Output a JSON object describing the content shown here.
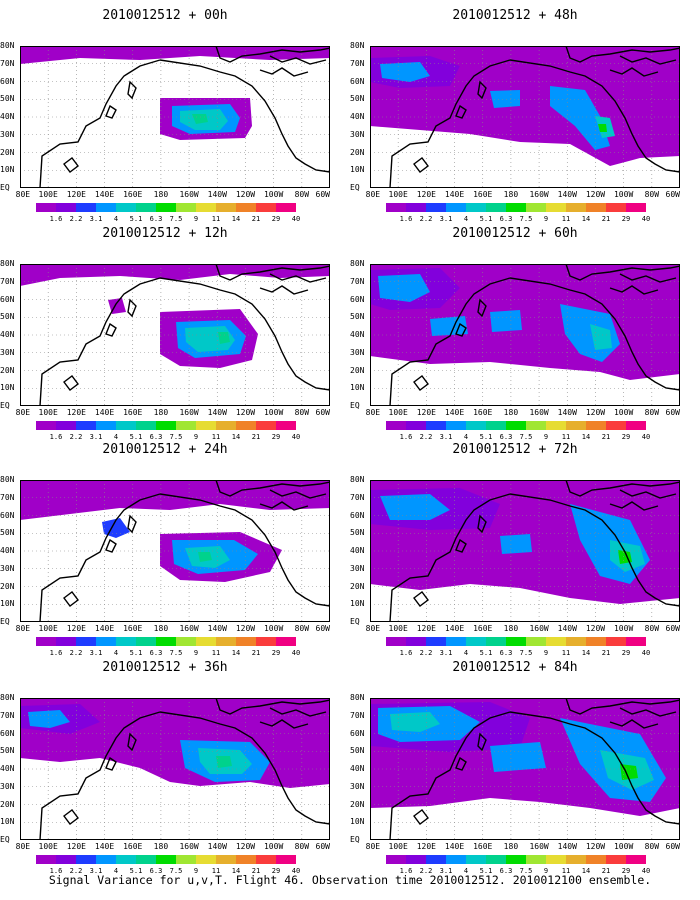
{
  "caption": "Signal Variance for u,v,T. Flight 46. Observation time 2010012512. 2010012100 ensemble.",
  "y_labels": [
    "80N",
    "70N",
    "60N",
    "50N",
    "40N",
    "30N",
    "20N",
    "10N",
    "EQ"
  ],
  "x_labels": [
    "80E",
    "100E",
    "120E",
    "140E",
    "160E",
    "180",
    "160W",
    "140W",
    "120W",
    "100W",
    "80W",
    "60W"
  ],
  "colorbar": {
    "colors": [
      "#a000c8",
      "#8200dc",
      "#1e3cff",
      "#0096ff",
      "#00c8c8",
      "#00d28c",
      "#00dc00",
      "#a0e632",
      "#e6dc32",
      "#e6af2d",
      "#f08228",
      "#fa3c3c",
      "#f00082"
    ],
    "labels": [
      "1.6",
      "2.2",
      "3.1",
      "4",
      "5.1",
      "6.3",
      "7.5",
      "9",
      "11",
      "14",
      "21",
      "29",
      "40"
    ]
  },
  "panels": [
    {
      "title": "2010012512 + 00h"
    },
    {
      "title": "2010012512 + 48h"
    },
    {
      "title": "2010012512 + 12h"
    },
    {
      "title": "2010012512 + 60h"
    },
    {
      "title": "2010012512 + 24h"
    },
    {
      "title": "2010012512 + 72h"
    },
    {
      "title": "2010012512 + 36h"
    },
    {
      "title": "2010012512 + 84h"
    }
  ]
}
